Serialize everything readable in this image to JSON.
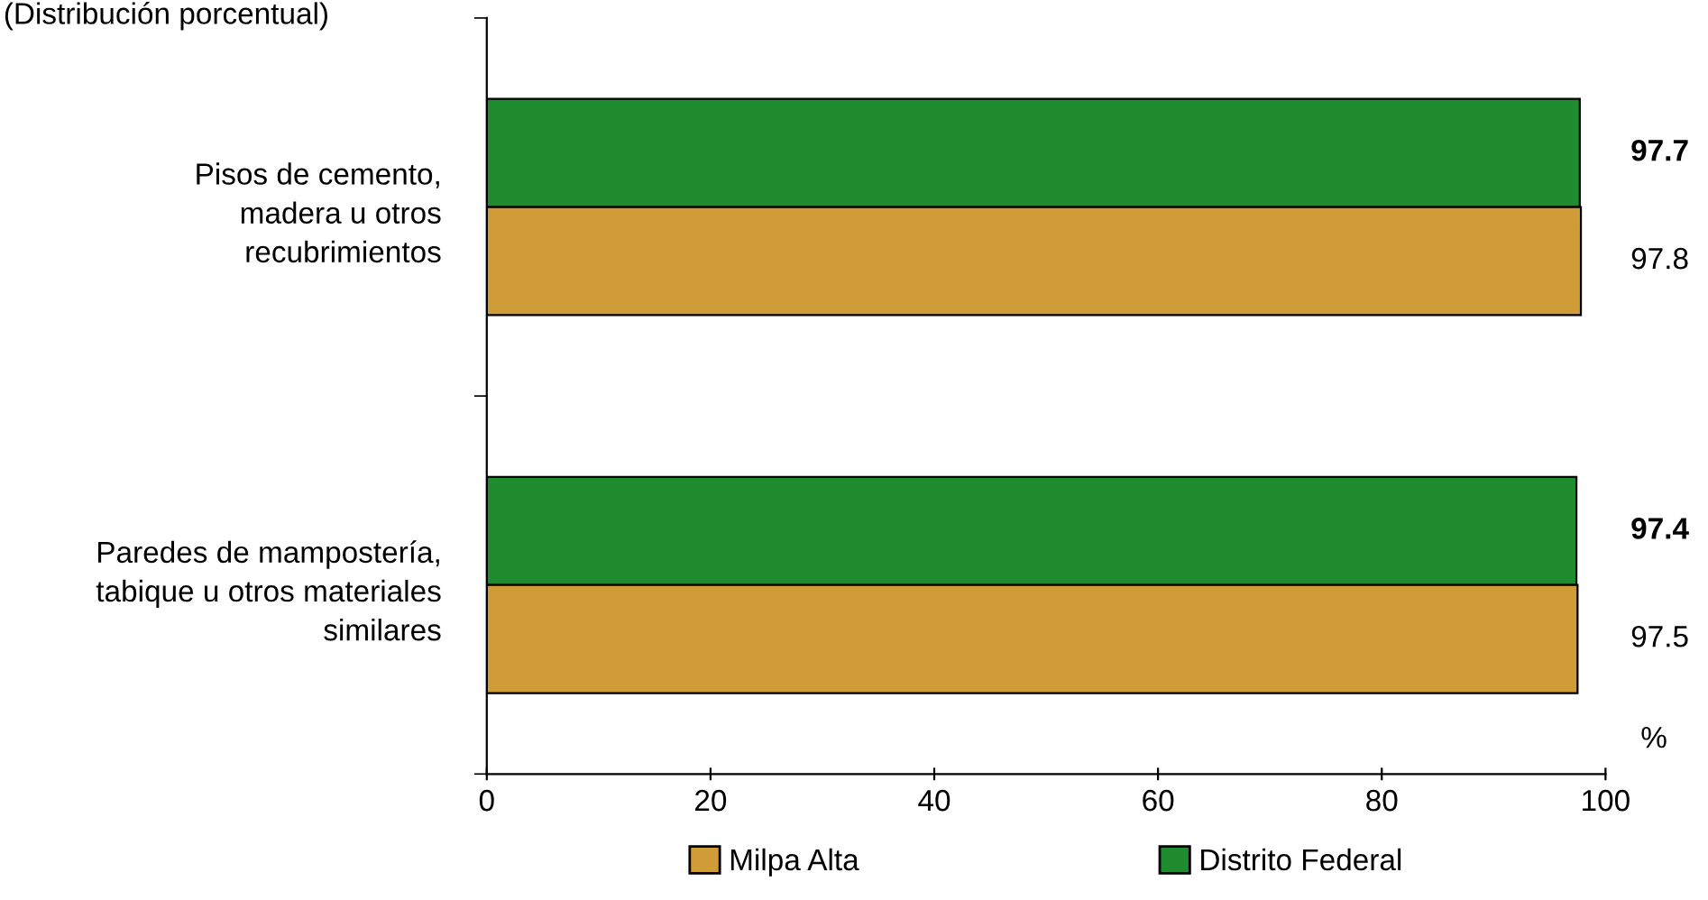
{
  "chart_data": {
    "type": "bar",
    "orientation": "horizontal",
    "title": "(Distribución porcentual)",
    "xlabel": "%",
    "categories": [
      "Pisos de cemento,\nmadera u otros\nrecubrimientos",
      "Paredes de mampostería,\ntabique u otros materiales\nsimilares"
    ],
    "series": [
      {
        "name": "Distrito Federal",
        "color": "#1f8c2f",
        "values": [
          97.7,
          97.4
        ]
      },
      {
        "name": "Milpa Alta",
        "color": "#d09c38",
        "values": [
          97.8,
          97.5
        ]
      }
    ],
    "xlim": [
      0,
      100
    ],
    "xticks": [
      0,
      20,
      40,
      60,
      80,
      100
    ],
    "data_labels": true,
    "grid": false,
    "legend": "bottom"
  }
}
